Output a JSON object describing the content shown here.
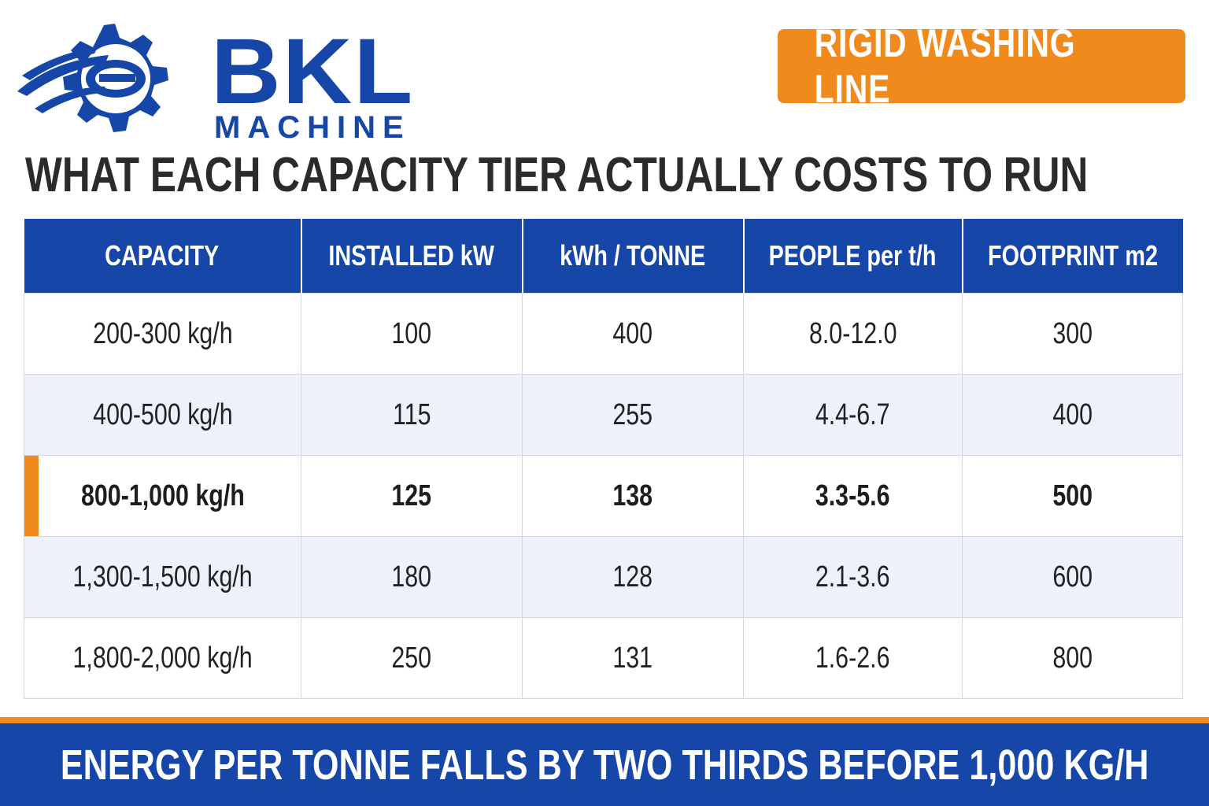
{
  "brand": {
    "name": "BKL",
    "subtitle": "MACHINE",
    "primary_color": "#1546a8",
    "accent_color": "#f08a1c"
  },
  "badge": {
    "label": "RIGID WASHING LINE"
  },
  "title": "WHAT EACH CAPACITY TIER ACTUALLY COSTS TO RUN",
  "table": {
    "headers": [
      "CAPACITY",
      "INSTALLED kW",
      "kWh / TONNE",
      "PEOPLE per t/h",
      "FOOTPRINT m2"
    ],
    "rows": [
      [
        "200-300 kg/h",
        "100",
        "400",
        "8.0-12.0",
        "300"
      ],
      [
        "400-500 kg/h",
        "115",
        "255",
        "4.4-6.7",
        "400"
      ],
      [
        "800-1,000 kg/h",
        "125",
        "138",
        "3.3-5.6",
        "500"
      ],
      [
        "1,300-1,500 kg/h",
        "180",
        "128",
        "2.1-3.6",
        "600"
      ],
      [
        "1,800-2,000 kg/h",
        "250",
        "131",
        "1.6-2.6",
        "800"
      ]
    ],
    "highlighted_row": 2
  },
  "footer": {
    "text": "ENERGY PER TONNE FALLS BY TWO THIRDS BEFORE 1,000 KG/H"
  }
}
